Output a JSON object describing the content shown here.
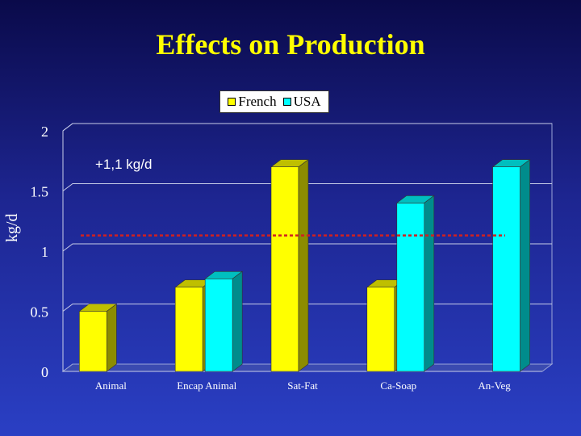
{
  "title": "Effects on Production",
  "chart_data": {
    "type": "bar",
    "title": "Effects on Production",
    "xlabel": "",
    "ylabel": "kg/d",
    "ylim": [
      0,
      2
    ],
    "yticks": [
      "0",
      "0.5",
      "1",
      "1.5",
      "2"
    ],
    "categories": [
      "Animal",
      "Encap Animal",
      "Sat-Fat",
      "Ca-Soap",
      "An-Veg"
    ],
    "series": [
      {
        "name": "French",
        "color": "#ffff00",
        "values": [
          0.5,
          0.7,
          1.7,
          0.7,
          null
        ]
      },
      {
        "name": "USA",
        "color": "#00ffff",
        "values": [
          null,
          0.77,
          null,
          1.4,
          1.7
        ]
      }
    ],
    "reference_line": {
      "value": 1.13,
      "color": "#d02020"
    },
    "annotation": "+1,1 kg/d",
    "legend_placement": "top",
    "grid": true
  }
}
